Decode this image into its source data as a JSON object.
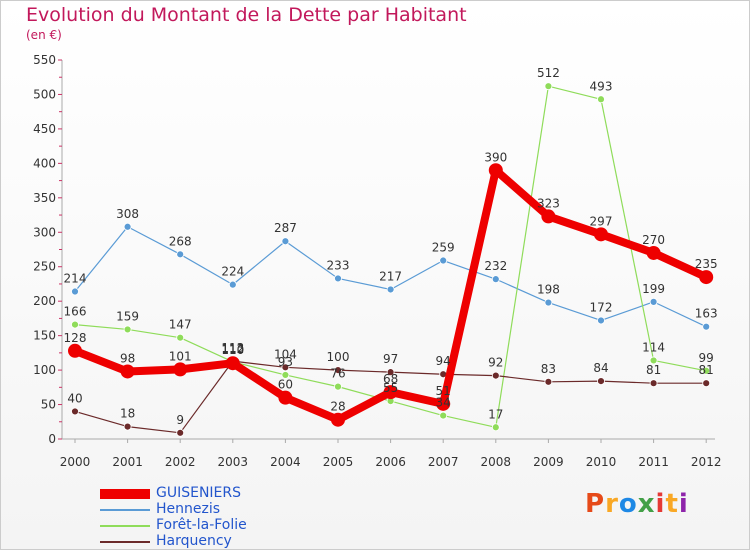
{
  "header": {
    "title": "Evolution du Montant de la Dette par Habitant",
    "subtitle": "(en €)"
  },
  "brand": {
    "name": "Proxiti",
    "letters": [
      "P",
      "r",
      "o",
      "x",
      "i",
      "t",
      "i"
    ],
    "colors": [
      "#e64a19",
      "#f9a825",
      "#1e88e5",
      "#43a047",
      "#e53935",
      "#f9a825",
      "#8e24aa"
    ]
  },
  "chart_data": {
    "type": "line",
    "title": "Evolution du Montant de la Dette par Habitant",
    "subtitle": "(en €)",
    "categories": [
      "2000",
      "2001",
      "2002",
      "2003",
      "2004",
      "2005",
      "2006",
      "2007",
      "2008",
      "2009",
      "2010",
      "2011",
      "2012"
    ],
    "ylim": [
      0,
      550
    ],
    "yticks": [
      0,
      50,
      100,
      150,
      200,
      250,
      300,
      350,
      400,
      450,
      500,
      550
    ],
    "grid": false,
    "legend_position": "bottom-left",
    "series": [
      {
        "name": "GUISENIERS",
        "color": "#ee0000",
        "values": [
          128,
          98,
          101,
          110,
          60,
          28,
          68,
          51,
          390,
          323,
          297,
          270,
          235
        ]
      },
      {
        "name": "Hennezis",
        "color": "#5a9bd5",
        "values": [
          214,
          308,
          268,
          224,
          287,
          233,
          217,
          259,
          232,
          198,
          172,
          199,
          163
        ]
      },
      {
        "name": "Forêt-la-Folie",
        "color": "#8fdc5a",
        "values": [
          166,
          159,
          147,
          112,
          93,
          76,
          55,
          34,
          17,
          512,
          493,
          114,
          99
        ]
      },
      {
        "name": "Harquency",
        "color": "#6b2a2a",
        "values": [
          40,
          18,
          9,
          113,
          104,
          100,
          97,
          94,
          92,
          83,
          84,
          81,
          81
        ]
      }
    ]
  }
}
